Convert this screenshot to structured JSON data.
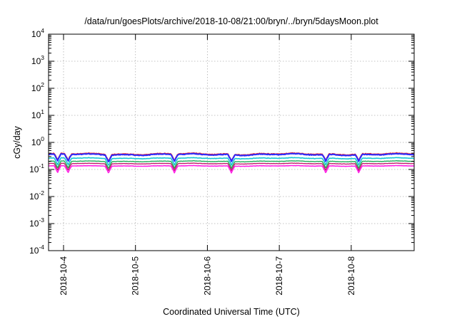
{
  "chart_data": {
    "type": "line",
    "title": "/data/run/goesPlots/archive/2018-10-08/21:00/bryn/../bryn/5daysMoon.plot",
    "xlabel": "Coordinated Universal Time (UTC)",
    "ylabel": "cGy/day",
    "y_scale": "log",
    "ylim": [
      0.0001,
      10000
    ],
    "y_ticks": [
      {
        "base": "10",
        "exp": "-4",
        "value": 0.0001
      },
      {
        "base": "10",
        "exp": "-3",
        "value": 0.001
      },
      {
        "base": "10",
        "exp": "-2",
        "value": 0.01
      },
      {
        "base": "10",
        "exp": "-1",
        "value": 0.1
      },
      {
        "base": "10",
        "exp": "0",
        "value": 1
      },
      {
        "base": "10",
        "exp": "1",
        "value": 10
      },
      {
        "base": "10",
        "exp": "2",
        "value": 100
      },
      {
        "base": "10",
        "exp": "3",
        "value": 1000
      },
      {
        "base": "10",
        "exp": "4",
        "value": 10000
      }
    ],
    "xlim": [
      "2018-10-03T19:00",
      "2018-10-08T21:00"
    ],
    "x_ticks": [
      "2018-10-4",
      "2018-10-5",
      "2018-10-6",
      "2018-10-7",
      "2018-10-8"
    ],
    "x_tick_dates": [
      "2018-10-04T00:00",
      "2018-10-05T00:00",
      "2018-10-06T00:00",
      "2018-10-07T00:00",
      "2018-10-08T00:00"
    ],
    "grid": true,
    "series": [
      {
        "color": "#e8232f",
        "base": 0.37,
        "noise": 0.08,
        "width": 2
      },
      {
        "color": "#2b2bff",
        "base": 0.355,
        "noise": 0.08,
        "width": 2
      },
      {
        "color": "#16c6d6",
        "base": 0.26,
        "noise": 0.05,
        "width": 1.6
      },
      {
        "color": "#1fae5a",
        "base": 0.2,
        "noise": 0.04,
        "width": 1.4
      },
      {
        "color": "#c01f6a",
        "base": 0.165,
        "noise": 0.035,
        "width": 1.4
      },
      {
        "color": "#ff1fe6",
        "base": 0.135,
        "noise": 0.03,
        "width": 1.6
      }
    ],
    "dips": [
      "2018-10-04T01:30",
      "2018-10-04T15:00",
      "2018-10-05T13:00",
      "2018-10-06T08:00",
      "2018-10-07T15:30",
      "2018-10-08T02:30",
      "2018-10-03T22:00"
    ]
  }
}
